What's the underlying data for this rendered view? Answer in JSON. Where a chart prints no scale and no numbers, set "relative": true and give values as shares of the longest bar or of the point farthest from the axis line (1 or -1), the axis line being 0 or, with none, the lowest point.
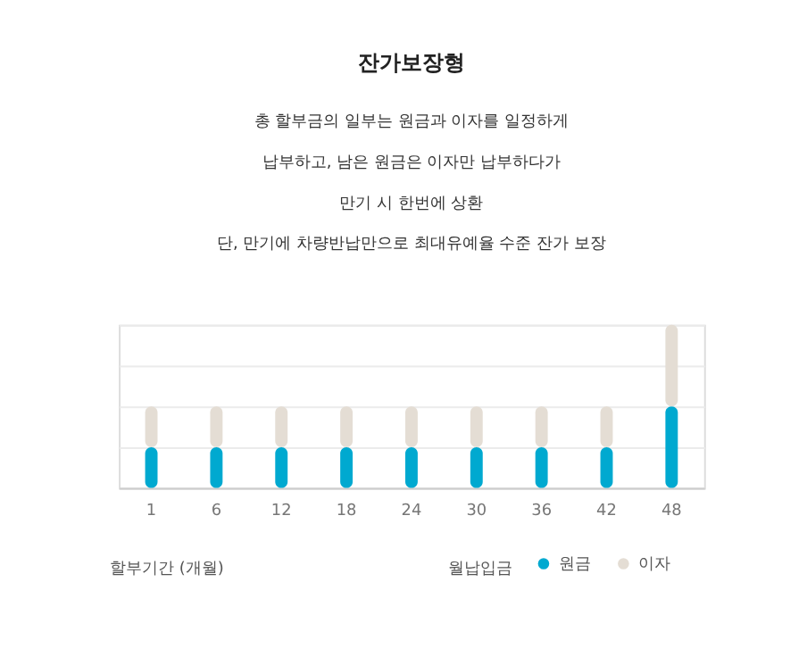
{
  "chart_data": {
    "type": "bar",
    "title": "잔가보장형",
    "subtitle": "총 할부금의 일부는 원금과 이자를 일정하게\n납부하고, 남은 원금은 이자만 납부하다가\n만기 시 한번에 상환\n단, 만기에 차량반납만으로 최대유예율 수준 잔가 보장",
    "categories": [
      "1",
      "6",
      "12",
      "18",
      "24",
      "30",
      "36",
      "42",
      "48"
    ],
    "stacked": true,
    "relative": true,
    "grid": "y",
    "legend": "bottom right",
    "series": [
      {
        "name": "원금",
        "color": "#00a9d0",
        "values": [
          0.25,
          0.25,
          0.25,
          0.25,
          0.25,
          0.25,
          0.25,
          0.25,
          0.5
        ]
      },
      {
        "name": "이자",
        "color": "#e4ddd4",
        "values": [
          0.25,
          0.25,
          0.25,
          0.25,
          0.25,
          0.25,
          0.25,
          0.25,
          0.5
        ]
      }
    ],
    "annotations": [
      "할부기간 (개월)",
      "월납입금"
    ]
  }
}
